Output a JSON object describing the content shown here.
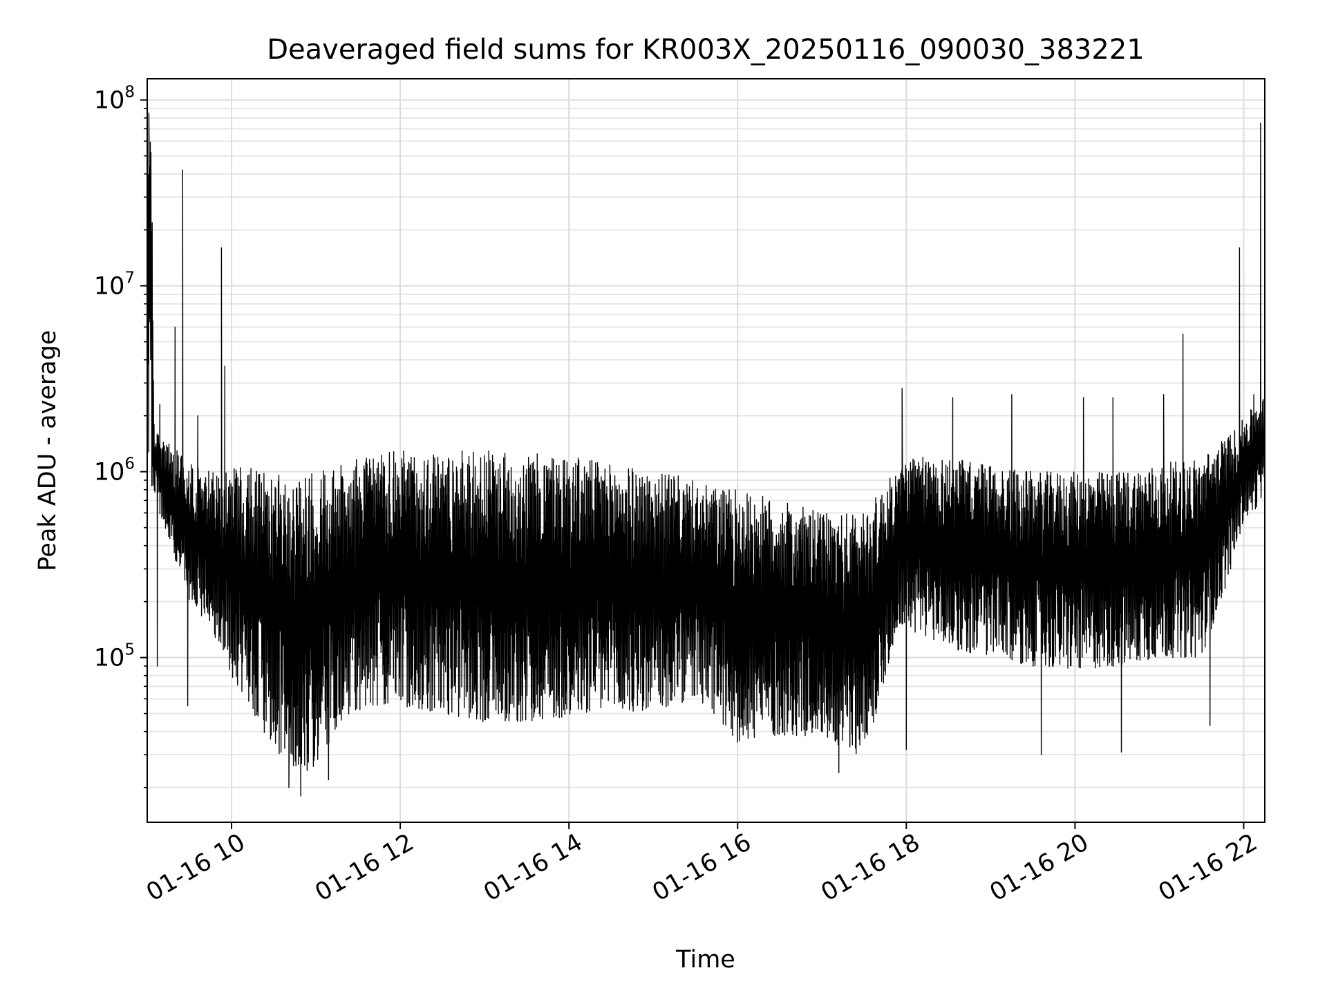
{
  "chart_data": {
    "type": "line",
    "title": "Deaveraged field sums for KR003X_20250116_090030_383221",
    "xlabel": "Time",
    "ylabel": "Peak ADU - average",
    "yscale": "log",
    "ylim": [
      13000,
      130000000
    ],
    "xlim_hours": [
      9.0,
      22.25
    ],
    "x_unit": "hour of 2025-01-16",
    "grid": true,
    "legend": "none",
    "line_color": "#000000",
    "x_ticks": [
      {
        "hour": 10,
        "label": "01-16 10"
      },
      {
        "hour": 12,
        "label": "01-16 12"
      },
      {
        "hour": 14,
        "label": "01-16 14"
      },
      {
        "hour": 16,
        "label": "01-16 16"
      },
      {
        "hour": 18,
        "label": "01-16 18"
      },
      {
        "hour": 20,
        "label": "01-16 20"
      },
      {
        "hour": 22,
        "label": "01-16 22"
      }
    ],
    "y_ticks": [
      {
        "value": 100000,
        "base": "10",
        "exp": "5"
      },
      {
        "value": 1000000,
        "base": "10",
        "exp": "6"
      },
      {
        "value": 10000000,
        "base": "10",
        "exp": "7"
      },
      {
        "value": 100000000,
        "base": "10",
        "exp": "8"
      }
    ],
    "series": [
      {
        "upper_envelope": [
          [
            9.02,
            80000000
          ],
          [
            9.05,
            85000000
          ],
          [
            9.08,
            1800000
          ],
          [
            9.15,
            1500000
          ],
          [
            9.3,
            1400000
          ],
          [
            9.5,
            1100000
          ],
          [
            9.8,
            1000000
          ],
          [
            10.0,
            1050000
          ],
          [
            10.2,
            1100000
          ],
          [
            10.4,
            1000000
          ],
          [
            10.6,
            950000
          ],
          [
            10.8,
            950000
          ],
          [
            11.0,
            1000000
          ],
          [
            11.2,
            1050000
          ],
          [
            11.5,
            1200000
          ],
          [
            12.0,
            1300000
          ],
          [
            12.5,
            1300000
          ],
          [
            13.0,
            1300000
          ],
          [
            13.5,
            1250000
          ],
          [
            14.0,
            1250000
          ],
          [
            14.5,
            1100000
          ],
          [
            15.0,
            1000000
          ],
          [
            15.3,
            950000
          ],
          [
            15.6,
            850000
          ],
          [
            16.0,
            800000
          ],
          [
            16.5,
            700000
          ],
          [
            17.0,
            600000
          ],
          [
            17.4,
            600000
          ],
          [
            17.6,
            700000
          ],
          [
            18.0,
            1200000
          ],
          [
            18.5,
            1200000
          ],
          [
            19.0,
            1100000
          ],
          [
            19.5,
            1000000
          ],
          [
            20.0,
            1000000
          ],
          [
            20.5,
            1000000
          ],
          [
            21.0,
            1100000
          ],
          [
            21.5,
            1200000
          ],
          [
            21.9,
            1700000
          ],
          [
            22.1,
            2200000
          ],
          [
            22.2,
            2500000
          ]
        ],
        "lower_envelope": [
          [
            9.0,
            1000000
          ],
          [
            9.2,
            500000
          ],
          [
            9.5,
            200000
          ],
          [
            9.8,
            130000
          ],
          [
            10.0,
            80000
          ],
          [
            10.3,
            45000
          ],
          [
            10.6,
            28000
          ],
          [
            10.9,
            24000
          ],
          [
            11.1,
            30000
          ],
          [
            11.3,
            45000
          ],
          [
            11.6,
            55000
          ],
          [
            12.0,
            55000
          ],
          [
            12.5,
            50000
          ],
          [
            13.0,
            45000
          ],
          [
            13.5,
            45000
          ],
          [
            14.0,
            48000
          ],
          [
            14.5,
            50000
          ],
          [
            15.0,
            50000
          ],
          [
            15.5,
            60000
          ],
          [
            15.8,
            45000
          ],
          [
            16.0,
            35000
          ],
          [
            16.5,
            38000
          ],
          [
            17.0,
            38000
          ],
          [
            17.4,
            30000
          ],
          [
            17.6,
            40000
          ],
          [
            17.9,
            150000
          ],
          [
            18.2,
            130000
          ],
          [
            18.6,
            110000
          ],
          [
            19.0,
            100000
          ],
          [
            19.5,
            90000
          ],
          [
            20.0,
            85000
          ],
          [
            20.5,
            90000
          ],
          [
            21.0,
            100000
          ],
          [
            21.5,
            100000
          ],
          [
            21.8,
            250000
          ],
          [
            22.0,
            550000
          ],
          [
            22.25,
            700000
          ]
        ],
        "spikes": [
          [
            9.02,
            85000000
          ],
          [
            9.42,
            42000000
          ],
          [
            9.33,
            6000000
          ],
          [
            9.88,
            16000000
          ],
          [
            9.92,
            3700000
          ],
          [
            9.15,
            2300000
          ],
          [
            9.6,
            2000000
          ],
          [
            17.95,
            2800000
          ],
          [
            18.55,
            2500000
          ],
          [
            19.25,
            2600000
          ],
          [
            20.1,
            2500000
          ],
          [
            20.45,
            2500000
          ],
          [
            21.05,
            2600000
          ],
          [
            21.28,
            5500000
          ],
          [
            21.95,
            16000000
          ],
          [
            22.2,
            75000000
          ],
          [
            22.12,
            2600000
          ]
        ],
        "dips": [
          [
            9.12,
            90000
          ],
          [
            9.48,
            55000
          ],
          [
            10.82,
            18000
          ],
          [
            10.68,
            20000
          ],
          [
            11.15,
            22000
          ],
          [
            17.2,
            24000
          ],
          [
            18.0,
            32000
          ],
          [
            19.6,
            30000
          ],
          [
            20.55,
            31000
          ],
          [
            21.6,
            43000
          ]
        ]
      }
    ]
  }
}
